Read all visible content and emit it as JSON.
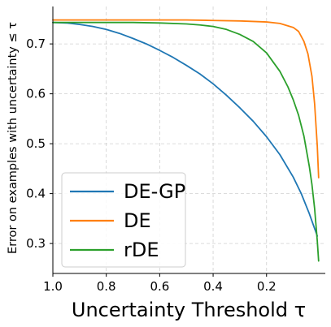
{
  "chart_data": {
    "type": "line",
    "title": "",
    "xlabel": "Uncertainty Threshold τ",
    "ylabel": "Error on examples with uncertainty ≤ τ",
    "xlim": [
      1.0,
      -0.02
    ],
    "ylim": [
      0.24,
      0.775
    ],
    "x_reversed": true,
    "xticks": [
      1.0,
      0.8,
      0.6,
      0.4,
      0.2
    ],
    "xtick_labels": [
      "1.0",
      "0.8",
      "0.6",
      "0.4",
      "0.2"
    ],
    "yticks": [
      0.3,
      0.4,
      0.5,
      0.6,
      0.7
    ],
    "ytick_labels": [
      "0.3",
      "0.4",
      "0.5",
      "0.6",
      "0.7"
    ],
    "grid": true,
    "legend_position": "bottom-left",
    "series": [
      {
        "name": "DE-GP",
        "color": "#1f77b4",
        "x": [
          1.0,
          0.95,
          0.9,
          0.85,
          0.8,
          0.75,
          0.7,
          0.65,
          0.6,
          0.55,
          0.5,
          0.45,
          0.4,
          0.35,
          0.3,
          0.25,
          0.2,
          0.15,
          0.1,
          0.07,
          0.04,
          0.02,
          0.01
        ],
        "y": [
          0.743,
          0.742,
          0.739,
          0.735,
          0.729,
          0.721,
          0.711,
          0.7,
          0.687,
          0.673,
          0.657,
          0.64,
          0.62,
          0.597,
          0.572,
          0.545,
          0.514,
          0.478,
          0.433,
          0.4,
          0.36,
          0.33,
          0.315
        ]
      },
      {
        "name": "DE",
        "color": "#ff7f0e",
        "x": [
          1.0,
          0.9,
          0.8,
          0.7,
          0.6,
          0.5,
          0.4,
          0.3,
          0.2,
          0.15,
          0.1,
          0.08,
          0.06,
          0.045,
          0.03,
          0.02,
          0.01,
          0.005
        ],
        "y": [
          0.748,
          0.748,
          0.748,
          0.748,
          0.748,
          0.748,
          0.747,
          0.746,
          0.744,
          0.741,
          0.733,
          0.725,
          0.705,
          0.68,
          0.635,
          0.58,
          0.495,
          0.432
        ]
      },
      {
        "name": "rDE",
        "color": "#2ca02c",
        "x": [
          1.0,
          0.9,
          0.8,
          0.7,
          0.6,
          0.5,
          0.45,
          0.4,
          0.35,
          0.3,
          0.25,
          0.2,
          0.15,
          0.12,
          0.1,
          0.08,
          0.06,
          0.04,
          0.03,
          0.02,
          0.01,
          0.005
        ],
        "y": [
          0.743,
          0.743,
          0.743,
          0.743,
          0.742,
          0.74,
          0.738,
          0.735,
          0.729,
          0.719,
          0.705,
          0.682,
          0.645,
          0.614,
          0.588,
          0.557,
          0.515,
          0.455,
          0.418,
          0.37,
          0.305,
          0.265
        ]
      }
    ]
  }
}
